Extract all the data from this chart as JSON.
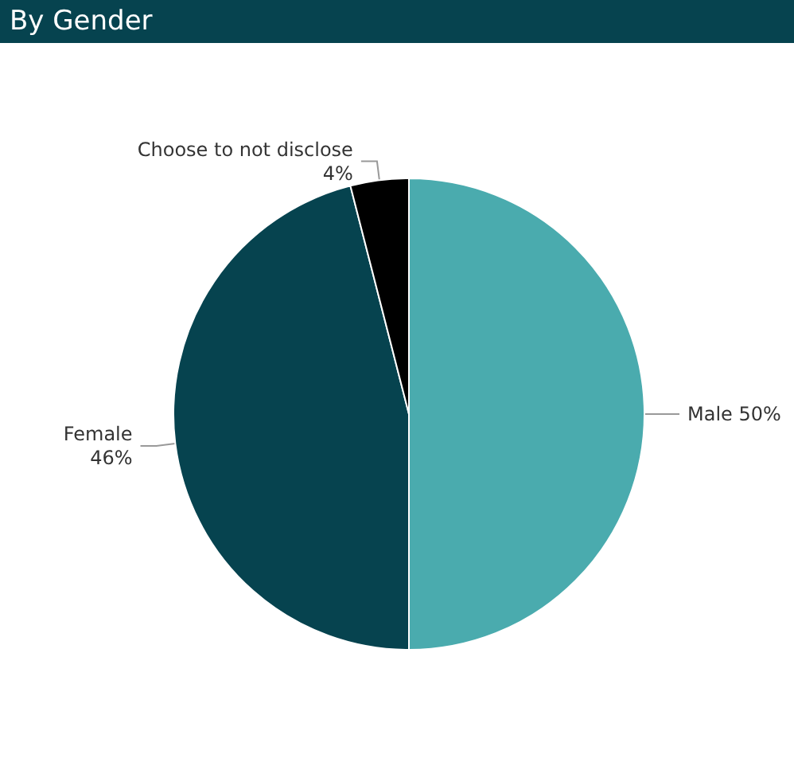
{
  "chart_data": {
    "type": "pie",
    "title": "By Gender",
    "categories": [
      "Male",
      "Female",
      "Choose to not disclose"
    ],
    "values": [
      50,
      46,
      4
    ],
    "colors": [
      "#4aabae",
      "#06434f",
      "#000000"
    ],
    "value_labels": [
      "50%",
      "46%",
      "4%"
    ],
    "legend": false
  }
}
